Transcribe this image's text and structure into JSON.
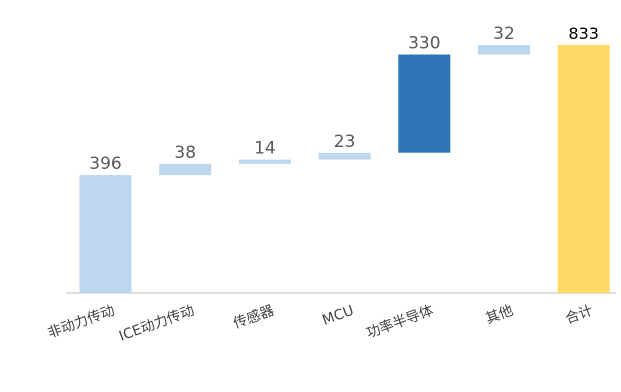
{
  "chart_data": {
    "type": "bar",
    "subtype": "waterfall",
    "categories": [
      "非动力传动",
      "ICE动力传动",
      "传感器",
      "MCU",
      "功率半导体",
      "其他",
      "合计"
    ],
    "values": [
      396,
      38,
      14,
      23,
      330,
      32,
      833
    ],
    "colors": [
      "#BDD7EE",
      "#BDD7EE",
      "#BDD7EE",
      "#BDD7EE",
      "#2E75B6",
      "#BDD7EE",
      "#FFD966"
    ],
    "ylim": [
      0,
      833
    ],
    "grid": false,
    "legend": "none",
    "title": "",
    "xlabel": "",
    "ylabel": ""
  }
}
